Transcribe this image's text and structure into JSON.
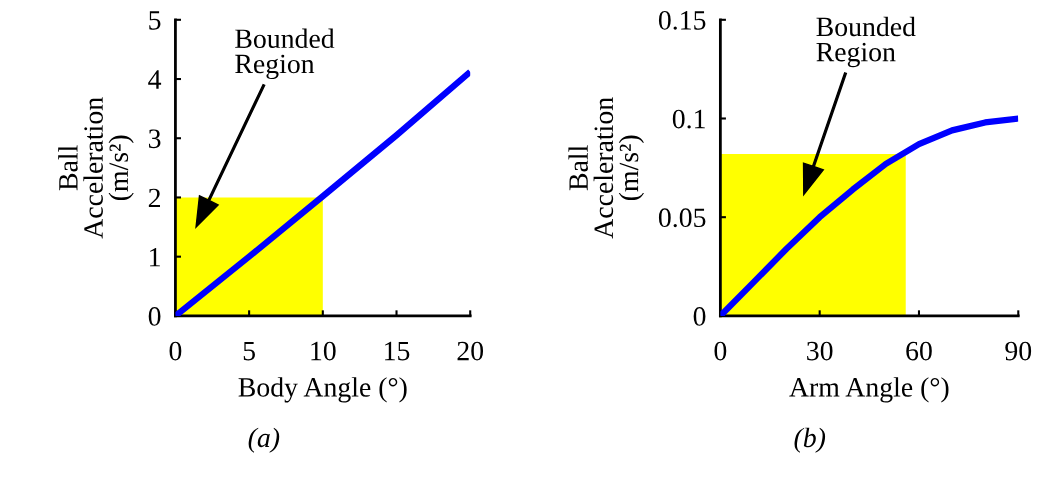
{
  "chart_data": [
    {
      "type": "line",
      "xlabel": "Body Angle (°)",
      "ylabel": "Ball\nAcceleration\n(m/s²)",
      "series": [
        {
          "type": "area",
          "color": "#ffff00",
          "x": [
            0,
            10
          ],
          "values": [
            2,
            2
          ]
        },
        {
          "color": "#0000ff",
          "x": [
            0,
            5,
            10,
            15,
            20
          ],
          "values": [
            0,
            1.0,
            2.02,
            3.05,
            4.12
          ]
        }
      ],
      "xlim": [
        0,
        20
      ],
      "xticks": [
        0,
        5,
        10,
        15,
        20
      ],
      "ylim": [
        0,
        5
      ],
      "yticks": [
        0,
        1,
        2,
        3,
        4,
        5
      ],
      "grid": false,
      "legend": false,
      "annotations": [
        "Bounded\nRegion",
        "(a)"
      ]
    },
    {
      "type": "line",
      "xlabel": "Arm Angle (°)",
      "ylabel": "Ball\nAcceleration\n(m/s²)",
      "series": [
        {
          "type": "area",
          "color": "#ffff00",
          "x": [
            0,
            56
          ],
          "values": [
            0.082,
            0.082
          ]
        },
        {
          "color": "#0000ff",
          "x": [
            0,
            10,
            20,
            30,
            40,
            50,
            60,
            70,
            80,
            90
          ],
          "values": [
            0,
            0.017,
            0.034,
            0.05,
            0.064,
            0.077,
            0.087,
            0.094,
            0.098,
            0.1
          ]
        }
      ],
      "xlim": [
        0,
        90
      ],
      "xticks": [
        0,
        30,
        60,
        90
      ],
      "ylim": [
        0,
        0.15
      ],
      "yticks": [
        0,
        0.05,
        0.1,
        0.15
      ],
      "grid": false,
      "legend": false,
      "annotations": [
        "Bounded\nRegion",
        "(b)"
      ]
    }
  ]
}
